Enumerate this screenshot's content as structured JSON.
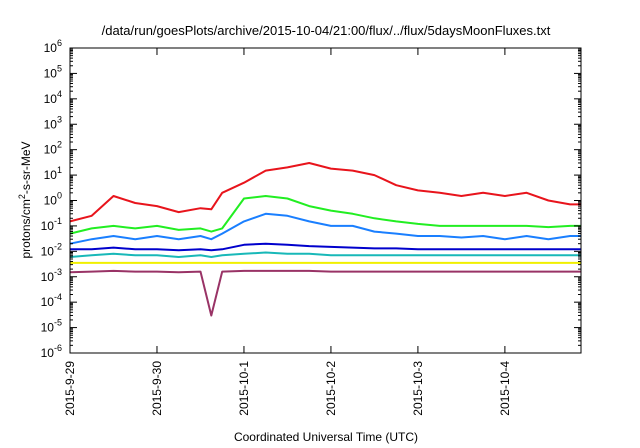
{
  "chart_data": {
    "type": "line",
    "title": "/data/run/goesPlots/archive/2015-10-04/21:00/flux/../flux/5daysMoonFluxes.txt",
    "xlabel": "Coordinated Universal Time (UTC)",
    "ylabel": "protons/cm²-s-sr-MeV",
    "ylabel_parts": {
      "pre": "protons/cm",
      "sup": "2",
      "post": "-s-sr-MeV"
    },
    "xscale": "date",
    "yscale": "log",
    "xlim": [
      "2015-09-29",
      "2015-10-04T21:00"
    ],
    "ylim": [
      1e-06,
      1000000.0
    ],
    "grid": false,
    "legend": "none",
    "x_ticks": [
      "2015-9-29",
      "2015-9-30",
      "2015-10-1",
      "2015-10-2",
      "2015-10-3",
      "2015-10-4"
    ],
    "y_ticks": [
      {
        "base": "10",
        "exp": "-6"
      },
      {
        "base": "10",
        "exp": "-5"
      },
      {
        "base": "10",
        "exp": "-4"
      },
      {
        "base": "10",
        "exp": "-3"
      },
      {
        "base": "10",
        "exp": "-2"
      },
      {
        "base": "10",
        "exp": "-1"
      },
      {
        "base": "10",
        "exp": "0"
      },
      {
        "base": "10",
        "exp": "1"
      },
      {
        "base": "10",
        "exp": "2"
      },
      {
        "base": "10",
        "exp": "3"
      },
      {
        "base": "10",
        "exp": "4"
      },
      {
        "base": "10",
        "exp": "5"
      },
      {
        "base": "10",
        "exp": "6"
      }
    ],
    "x": [
      "2015-09-29T00:00",
      "2015-09-29T06:00",
      "2015-09-29T12:00",
      "2015-09-29T18:00",
      "2015-09-30T00:00",
      "2015-09-30T06:00",
      "2015-09-30T12:00",
      "2015-09-30T15:00",
      "2015-09-30T18:00",
      "2015-10-01T00:00",
      "2015-10-01T06:00",
      "2015-10-01T12:00",
      "2015-10-01T18:00",
      "2015-10-02T00:00",
      "2015-10-02T06:00",
      "2015-10-02T12:00",
      "2015-10-02T18:00",
      "2015-10-03T00:00",
      "2015-10-03T06:00",
      "2015-10-03T12:00",
      "2015-10-03T18:00",
      "2015-10-04T00:00",
      "2015-10-04T06:00",
      "2015-10-04T12:00",
      "2015-10-04T18:00",
      "2015-10-04T21:00"
    ],
    "series": [
      {
        "color": "#e8141c",
        "values": [
          0.15,
          0.25,
          1.5,
          0.8,
          0.6,
          0.35,
          0.5,
          0.45,
          2.0,
          5,
          15,
          20,
          30,
          18,
          15,
          10,
          4,
          2.5,
          2,
          1.5,
          2,
          1.5,
          2.0,
          1.0,
          0.7,
          0.7
        ]
      },
      {
        "color": "#22ee22",
        "values": [
          0.05,
          0.08,
          0.1,
          0.08,
          0.1,
          0.07,
          0.08,
          0.06,
          0.08,
          1.2,
          1.5,
          1.2,
          0.6,
          0.4,
          0.3,
          0.2,
          0.15,
          0.12,
          0.1,
          0.1,
          0.1,
          0.1,
          0.1,
          0.09,
          0.1,
          0.1
        ]
      },
      {
        "color": "#1a7fff",
        "values": [
          0.02,
          0.03,
          0.04,
          0.03,
          0.04,
          0.03,
          0.04,
          0.03,
          0.05,
          0.15,
          0.3,
          0.25,
          0.15,
          0.1,
          0.1,
          0.06,
          0.05,
          0.04,
          0.04,
          0.035,
          0.04,
          0.03,
          0.04,
          0.03,
          0.04,
          0.04
        ]
      },
      {
        "color": "#0000cc",
        "values": [
          0.012,
          0.012,
          0.014,
          0.012,
          0.012,
          0.011,
          0.012,
          0.011,
          0.012,
          0.018,
          0.02,
          0.018,
          0.016,
          0.015,
          0.014,
          0.013,
          0.013,
          0.012,
          0.012,
          0.012,
          0.012,
          0.012,
          0.012,
          0.012,
          0.012,
          0.012
        ]
      },
      {
        "color": "#18b8b8",
        "values": [
          0.006,
          0.007,
          0.008,
          0.007,
          0.007,
          0.006,
          0.007,
          0.006,
          0.007,
          0.008,
          0.009,
          0.008,
          0.008,
          0.007,
          0.007,
          0.007,
          0.007,
          0.007,
          0.007,
          0.007,
          0.007,
          0.007,
          0.007,
          0.007,
          0.007,
          0.007
        ]
      },
      {
        "color": "#f0f000",
        "values": [
          0.0035,
          0.0035,
          0.0035,
          0.0035,
          0.0035,
          0.0035,
          0.0035,
          0.0035,
          0.0035,
          0.0035,
          0.0035,
          0.0035,
          0.0035,
          0.0035,
          0.0035,
          0.0035,
          0.0035,
          0.0035,
          0.0035,
          0.0035,
          0.0035,
          0.0035,
          0.0035,
          0.0035,
          0.0035,
          0.0035
        ]
      },
      {
        "color": "#993366",
        "values": [
          0.0015,
          0.0016,
          0.0017,
          0.0016,
          0.0016,
          0.0015,
          0.0016,
          3e-05,
          0.0016,
          0.0017,
          0.0017,
          0.0017,
          0.0017,
          0.0016,
          0.0016,
          0.0016,
          0.0016,
          0.0016,
          0.0016,
          0.0016,
          0.0016,
          0.0016,
          0.0016,
          0.0016,
          0.0016,
          0.0016
        ]
      }
    ]
  }
}
